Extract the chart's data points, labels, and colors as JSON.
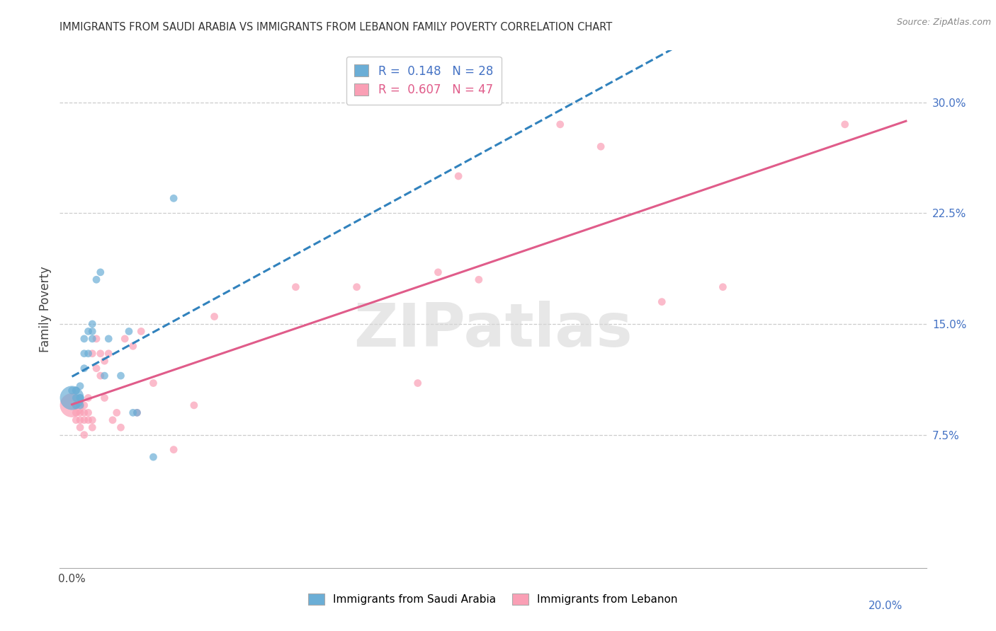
{
  "title": "IMMIGRANTS FROM SAUDI ARABIA VS IMMIGRANTS FROM LEBANON FAMILY POVERTY CORRELATION CHART",
  "source": "Source: ZipAtlas.com",
  "ylabel": "Family Poverty",
  "y_tick_vals": [
    7.5,
    15.0,
    22.5,
    30.0
  ],
  "y_tick_labels": [
    "7.5%",
    "15.0%",
    "22.5%",
    "30.0%"
  ],
  "x_tick_vals": [
    0.0,
    5.0,
    10.0,
    15.0,
    20.0
  ],
  "xlim": [
    -0.3,
    21.0
  ],
  "ylim": [
    -1.5,
    33.5
  ],
  "color_blue": "#6baed6",
  "color_pink": "#fa9fb5",
  "color_blue_line": "#3182bd",
  "color_pink_line": "#e05c8a",
  "watermark": "ZIPatlas",
  "saudi_x": [
    0.0,
    0.0,
    0.1,
    0.1,
    0.1,
    0.1,
    0.2,
    0.2,
    0.2,
    0.2,
    0.3,
    0.3,
    0.3,
    0.4,
    0.4,
    0.5,
    0.5,
    0.5,
    0.6,
    0.7,
    0.8,
    0.9,
    1.2,
    1.4,
    1.5,
    1.6,
    2.0,
    2.5
  ],
  "saudi_y": [
    10.0,
    10.5,
    9.5,
    10.0,
    10.5,
    10.5,
    9.5,
    10.0,
    10.0,
    10.8,
    12.0,
    13.0,
    14.0,
    13.0,
    14.5,
    14.0,
    14.5,
    15.0,
    18.0,
    18.5,
    11.5,
    14.0,
    11.5,
    14.5,
    9.0,
    9.0,
    6.0,
    23.5
  ],
  "saudi_sizes": [
    600,
    60,
    60,
    60,
    60,
    60,
    60,
    60,
    60,
    60,
    60,
    60,
    60,
    60,
    60,
    60,
    60,
    60,
    60,
    60,
    60,
    60,
    60,
    60,
    60,
    60,
    60,
    60
  ],
  "lebanon_x": [
    0.0,
    0.1,
    0.1,
    0.1,
    0.1,
    0.2,
    0.2,
    0.2,
    0.3,
    0.3,
    0.3,
    0.3,
    0.4,
    0.4,
    0.4,
    0.5,
    0.5,
    0.5,
    0.6,
    0.6,
    0.7,
    0.7,
    0.8,
    0.8,
    0.9,
    1.0,
    1.1,
    1.2,
    1.3,
    1.5,
    1.6,
    1.7,
    2.0,
    2.5,
    3.0,
    3.5,
    5.5,
    7.0,
    8.5,
    9.0,
    9.5,
    10.0,
    12.0,
    13.0,
    14.5,
    16.0,
    19.0
  ],
  "lebanon_y": [
    9.5,
    8.5,
    9.0,
    9.5,
    9.5,
    8.0,
    8.5,
    9.0,
    7.5,
    8.5,
    9.0,
    9.5,
    8.5,
    9.0,
    10.0,
    8.0,
    8.5,
    13.0,
    12.0,
    14.0,
    11.5,
    13.0,
    10.0,
    12.5,
    13.0,
    8.5,
    9.0,
    8.0,
    14.0,
    13.5,
    9.0,
    14.5,
    11.0,
    6.5,
    9.5,
    15.5,
    17.5,
    17.5,
    11.0,
    18.5,
    25.0,
    18.0,
    28.5,
    27.0,
    16.5,
    17.5,
    28.5
  ],
  "lebanon_sizes": [
    600,
    60,
    60,
    60,
    60,
    60,
    60,
    60,
    60,
    60,
    60,
    60,
    60,
    60,
    60,
    60,
    60,
    60,
    60,
    60,
    60,
    60,
    60,
    60,
    60,
    60,
    60,
    60,
    60,
    60,
    60,
    60,
    60,
    60,
    60,
    60,
    60,
    60,
    60,
    60,
    60,
    60,
    60,
    60,
    60,
    60,
    60
  ]
}
